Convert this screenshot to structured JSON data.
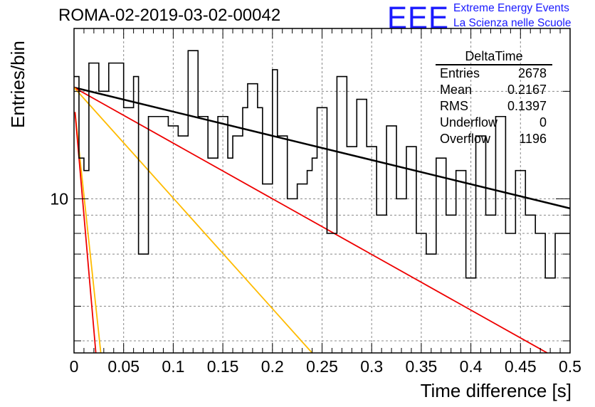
{
  "title": "ROMA-02-2019-03-02-00042",
  "logo": {
    "text": "EEE",
    "line1": "Extreme Energy Events",
    "line2": "La Scienza nelle Scuole",
    "color": "#1a1aff"
  },
  "stats": {
    "title": "DeltaTime",
    "rows": [
      {
        "label": "Entries",
        "value": "2678"
      },
      {
        "label": "Mean",
        "value": "0.2167"
      },
      {
        "label": "RMS",
        "value": "0.1397"
      },
      {
        "label": "Underflow",
        "value": "0"
      },
      {
        "label": "Overflow",
        "value": "1196"
      }
    ]
  },
  "chart_data": {
    "type": "histogram",
    "title": "ROMA-02-2019-03-02-00042",
    "xlabel": "Time difference [s]",
    "ylabel": "Entries/bin",
    "xlim": [
      0,
      0.5
    ],
    "ylim": [
      3.7,
      30
    ],
    "yscale": "log",
    "grid": true,
    "x_ticks": [
      "0",
      "0.05",
      "0.1",
      "0.15",
      "0.2",
      "0.25",
      "0.3",
      "0.35",
      "0.4",
      "0.45",
      "0.5"
    ],
    "y_ticks": [
      "10"
    ],
    "bin_width": 0.005,
    "histogram_counts": [
      22,
      13,
      12,
      24,
      24,
      20,
      20,
      24,
      24,
      24,
      18,
      18,
      22,
      7,
      7,
      17,
      17,
      17,
      17,
      16,
      16,
      15,
      15,
      26,
      26,
      17,
      17,
      13,
      13,
      17,
      17,
      13,
      15,
      15,
      18,
      21,
      21,
      18,
      11,
      11,
      23,
      15,
      15,
      10,
      10,
      11,
      11,
      12,
      13,
      18,
      18,
      8,
      8,
      22,
      22,
      14,
      14,
      19,
      19,
      14,
      14,
      9,
      9,
      16,
      16,
      10,
      10,
      14,
      14,
      8,
      8,
      7,
      7,
      13,
      13,
      9,
      9,
      12,
      12,
      6,
      6,
      15,
      15,
      9,
      9,
      17,
      17,
      8,
      8,
      12,
      12,
      9,
      9,
      8,
      8,
      6,
      6,
      8,
      8,
      8
    ],
    "fits": [
      {
        "color": "#000000",
        "start": [
          0,
          20.5
        ],
        "end": [
          0.5,
          9.4
        ]
      },
      {
        "color": "#ee0000",
        "start": [
          0,
          20.5
        ],
        "end": [
          0.477,
          3.7
        ]
      },
      {
        "color": "#ffbb00",
        "start": [
          0,
          20.5
        ],
        "end": [
          0.24,
          3.7
        ]
      },
      {
        "color": "#ffbb00",
        "start": [
          0.001,
          17.5
        ],
        "end": [
          0.027,
          3.7
        ]
      },
      {
        "color": "#ee0000",
        "start": [
          0.001,
          17.5
        ],
        "end": [
          0.022,
          3.7
        ]
      }
    ]
  }
}
